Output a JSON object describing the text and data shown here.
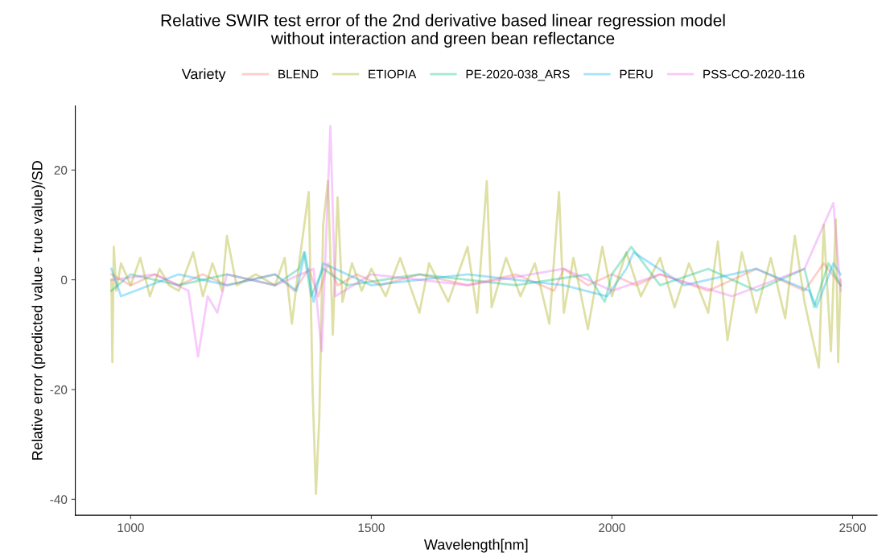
{
  "chart_data": {
    "type": "line",
    "title": "Relative SWIR test error of the 2nd derivative based linear regression model\nwithout interaction and green bean reflectance",
    "xlabel": "Wavelength[nm]",
    "ylabel": "Relative error (predicted value - true value)/SD",
    "legend_title": "Variety",
    "xlim": [
      885,
      2551
    ],
    "xticks": [
      1000,
      1500,
      2000,
      2500
    ],
    "ylim": [
      -42.9,
      31.7
    ],
    "yticks": [
      -40,
      -20,
      0,
      20
    ],
    "grid": false,
    "legend": "top",
    "line_style": "solid",
    "marker": "none",
    "series": [
      {
        "name": "BLEND",
        "color": "#f8766d",
        "x": [
          960,
          1000,
          1050,
          1100,
          1150,
          1200,
          1250,
          1300,
          1340,
          1370,
          1390,
          1410,
          1430,
          1470,
          1520,
          1600,
          1700,
          1800,
          1880,
          1900,
          1950,
          2000,
          2050,
          2100,
          2200,
          2300,
          2400,
          2440,
          2475
        ],
        "values": [
          1,
          -1,
          1,
          -1,
          1,
          -1,
          0,
          1,
          -2,
          2,
          -3,
          3,
          -1,
          1,
          -1,
          1,
          -1,
          1,
          -2,
          2,
          -1,
          1,
          -1,
          1,
          -2,
          2,
          -2,
          3,
          -1
        ]
      },
      {
        "name": "ETIOPIA",
        "color": "#a3a500",
        "x": [
          960,
          962,
          965,
          970,
          980,
          1000,
          1020,
          1040,
          1060,
          1080,
          1100,
          1130,
          1150,
          1170,
          1190,
          1200,
          1220,
          1260,
          1300,
          1320,
          1335,
          1350,
          1370,
          1378,
          1385,
          1392,
          1400,
          1410,
          1420,
          1430,
          1440,
          1460,
          1480,
          1500,
          1530,
          1560,
          1600,
          1620,
          1660,
          1700,
          1720,
          1740,
          1750,
          1780,
          1810,
          1840,
          1870,
          1890,
          1900,
          1920,
          1950,
          1980,
          2000,
          2030,
          2060,
          2100,
          2130,
          2160,
          2200,
          2220,
          2240,
          2270,
          2300,
          2330,
          2360,
          2380,
          2400,
          2430,
          2440,
          2455,
          2465,
          2470,
          2475
        ],
        "values": [
          0,
          -15,
          6,
          -2,
          3,
          -1,
          4,
          -3,
          2,
          -1,
          -2,
          5,
          -3,
          3,
          -2,
          8,
          -1,
          1,
          -1,
          4,
          -8,
          3,
          16,
          -20,
          -39,
          -25,
          10,
          18,
          -10,
          15,
          -4,
          3,
          -2,
          2,
          -3,
          4,
          -6,
          3,
          -4,
          6,
          -6,
          18,
          -5,
          4,
          -3,
          3,
          -8,
          16,
          -6,
          4,
          -9,
          6,
          -3,
          5,
          -3,
          4,
          -5,
          3,
          -6,
          7,
          -11,
          5,
          -6,
          4,
          -7,
          8,
          -4,
          -16,
          10,
          -13,
          11,
          -15,
          0
        ]
      },
      {
        "name": "PE-2020-038_ARS",
        "color": "#00bf7d",
        "x": [
          960,
          1000,
          1100,
          1200,
          1300,
          1350,
          1360,
          1375,
          1400,
          1450,
          1600,
          1800,
          1950,
          1985,
          2000,
          2040,
          2100,
          2200,
          2300,
          2400,
          2420,
          2450,
          2475
        ],
        "values": [
          -2,
          1,
          -1,
          1,
          -1,
          2,
          5,
          -3,
          2,
          -1,
          1,
          -1,
          1,
          -4,
          1,
          6,
          -1,
          2,
          -2,
          2,
          -5,
          3,
          -1
        ]
      },
      {
        "name": "PERU",
        "color": "#00b0f6",
        "x": [
          960,
          980,
          1100,
          1200,
          1300,
          1345,
          1362,
          1380,
          1400,
          1500,
          1700,
          1900,
          1990,
          2030,
          2045,
          2150,
          2300,
          2410,
          2425,
          2460,
          2475
        ],
        "values": [
          2,
          -3,
          1,
          -1,
          1,
          -2,
          5,
          -4,
          3,
          -1,
          1,
          -1,
          -3,
          2,
          5,
          -1,
          2,
          -2,
          -5,
          3,
          1
        ]
      },
      {
        "name": "PSS-CO-2020-116",
        "color": "#e76bf3",
        "x": [
          960,
          1050,
          1120,
          1140,
          1160,
          1180,
          1200,
          1300,
          1380,
          1397,
          1405,
          1415,
          1425,
          1500,
          1700,
          1900,
          2000,
          2100,
          2250,
          2400,
          2460,
          2475
        ],
        "values": [
          0,
          1,
          -2,
          -14,
          -3,
          -6,
          1,
          -1,
          2,
          -13,
          5,
          28,
          -3,
          1,
          -1,
          2,
          -2,
          1,
          -3,
          2,
          14,
          -2
        ]
      }
    ]
  }
}
